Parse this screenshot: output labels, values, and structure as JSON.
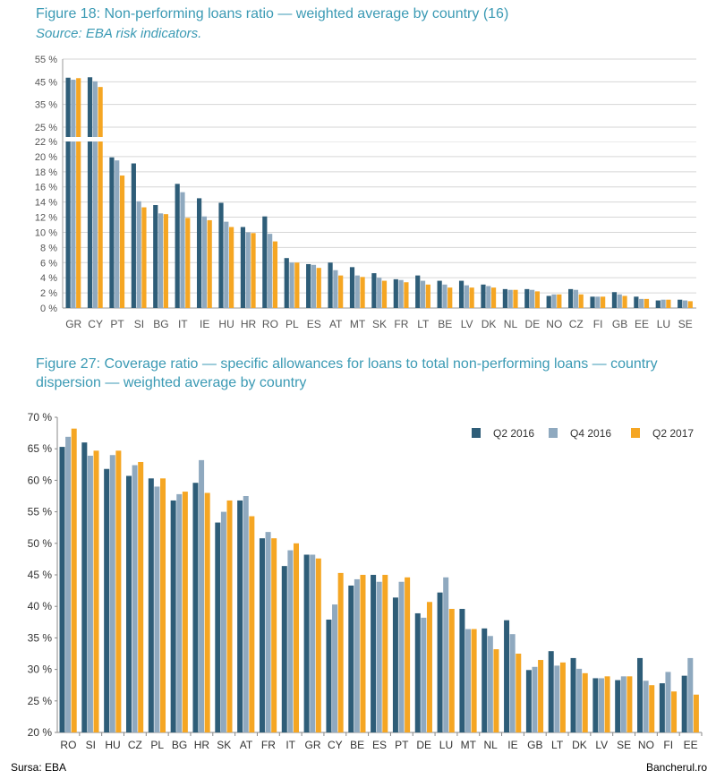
{
  "figure18": {
    "title_lead": "Figure 18:",
    "title_rest": " Non-performing loans ratio — weighted average by country (16)",
    "subtitle": "Source: EBA risk indicators."
  },
  "figure27": {
    "title_lead": "Figure 27:",
    "title_rest": " Coverage ratio — specific allowances for loans to total non-performing loans — country dispersion — weighted average by country"
  },
  "footer": {
    "source": "Sursa: EBA",
    "brand": "Bancherul.ro"
  },
  "colors": {
    "q2_2016": "#2e5d78",
    "q4_2016": "#8fa9bf",
    "q2_2017": "#f5a623",
    "title": "#3b9ab4"
  },
  "chart_data": [
    {
      "type": "bar",
      "title": "Non-performing loans ratio — weighted average by country",
      "axis_break": "broken y-axis: 0–22 % linear, 22–55 % compressed",
      "ytick_labels": [
        "0 %",
        "2 %",
        "4 %",
        "6 %",
        "8 %",
        "10 %",
        "12 %",
        "14 %",
        "16 %",
        "18 %",
        "20 %",
        "22 %",
        "25 %",
        "35 %",
        "45 %",
        "55 %"
      ],
      "categories": [
        "GR",
        "CY",
        "PT",
        "SI",
        "BG",
        "IT",
        "IE",
        "HU",
        "HR",
        "RO",
        "PL",
        "ES",
        "AT",
        "MT",
        "SK",
        "FR",
        "LT",
        "BE",
        "LV",
        "DK",
        "NL",
        "DE",
        "NO",
        "CZ",
        "FI",
        "GB",
        "EE",
        "LU",
        "SE"
      ],
      "series": [
        {
          "name": "Q2 2016",
          "color": "#2e5d78",
          "values": [
            46.8,
            47.0,
            19.9,
            19.1,
            13.6,
            16.4,
            14.5,
            13.9,
            10.7,
            12.1,
            6.6,
            5.8,
            6.0,
            5.4,
            4.6,
            3.8,
            4.3,
            3.6,
            3.6,
            3.1,
            2.5,
            2.5,
            1.6,
            2.5,
            1.5,
            2.1,
            1.5,
            1.0,
            1.1
          ]
        },
        {
          "name": "Q4 2016",
          "color": "#8fa9bf",
          "values": [
            45.9,
            45.2,
            19.5,
            14.1,
            12.5,
            15.3,
            12.1,
            11.4,
            10.0,
            9.8,
            6.0,
            5.7,
            5.0,
            4.3,
            4.0,
            3.7,
            3.6,
            3.1,
            3.0,
            2.9,
            2.4,
            2.4,
            1.8,
            2.4,
            1.5,
            1.8,
            1.2,
            1.1,
            1.0
          ]
        },
        {
          "name": "Q2 2017",
          "color": "#f5a623",
          "values": [
            46.6,
            42.7,
            17.5,
            13.3,
            12.4,
            11.9,
            11.6,
            10.7,
            9.9,
            8.8,
            6.0,
            5.3,
            4.3,
            4.1,
            3.6,
            3.4,
            3.1,
            2.7,
            2.7,
            2.7,
            2.4,
            2.2,
            1.8,
            1.8,
            1.5,
            1.6,
            1.2,
            1.1,
            0.9
          ]
        }
      ]
    },
    {
      "type": "bar",
      "title": "Coverage ratio — specific allowances for loans to total non-performing loans — country dispersion — weighted average by country",
      "ylim": [
        20,
        70
      ],
      "ytick_labels": [
        "20 %",
        "25 %",
        "30 %",
        "35 %",
        "40 %",
        "45 %",
        "50 %",
        "55 %",
        "60 %",
        "65 %",
        "70 %"
      ],
      "legend_position": "top-right",
      "categories": [
        "RO",
        "SI",
        "HU",
        "CZ",
        "PL",
        "BG",
        "HR",
        "SK",
        "AT",
        "FR",
        "IT",
        "GR",
        "CY",
        "BE",
        "ES",
        "PT",
        "DE",
        "LU",
        "MT",
        "NL",
        "IE",
        "GB",
        "LT",
        "DK",
        "LV",
        "SE",
        "NO",
        "FI",
        "EE"
      ],
      "series": [
        {
          "name": "Q2 2016",
          "color": "#2e5d78",
          "values": [
            65.3,
            66.0,
            61.8,
            60.7,
            60.3,
            56.8,
            59.6,
            53.3,
            56.8,
            50.8,
            46.4,
            48.2,
            37.9,
            43.3,
            45.0,
            41.4,
            38.9,
            42.2,
            39.6,
            36.5,
            37.8,
            29.9,
            32.9,
            31.8,
            28.6,
            28.3,
            31.8,
            27.8,
            29.0
          ]
        },
        {
          "name": "Q4 2016",
          "color": "#8fa9bf",
          "values": [
            66.9,
            63.9,
            64.0,
            62.4,
            59.0,
            57.8,
            63.2,
            55.0,
            57.5,
            51.8,
            48.9,
            48.2,
            40.3,
            44.3,
            43.9,
            43.9,
            38.2,
            44.6,
            36.4,
            35.3,
            35.6,
            30.4,
            30.6,
            30.1,
            28.6,
            28.9,
            28.2,
            29.6,
            31.8
          ]
        },
        {
          "name": "Q2 2017",
          "color": "#f5a623",
          "values": [
            68.2,
            64.7,
            64.7,
            62.9,
            60.3,
            58.2,
            58.0,
            56.8,
            54.3,
            50.8,
            50.0,
            47.6,
            45.3,
            45.0,
            45.0,
            44.6,
            40.7,
            39.6,
            36.4,
            33.2,
            32.5,
            31.5,
            31.1,
            29.4,
            28.9,
            28.9,
            27.5,
            26.5,
            26.0
          ]
        }
      ]
    }
  ]
}
